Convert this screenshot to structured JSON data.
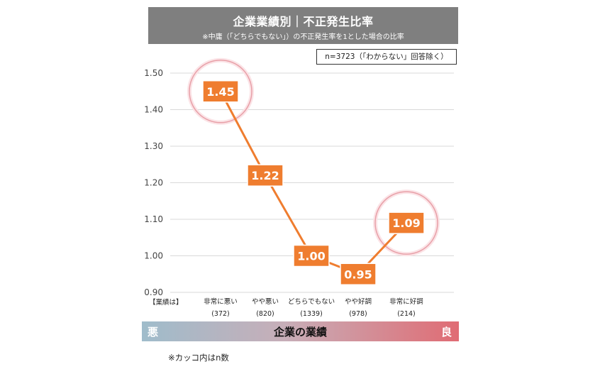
{
  "header": {
    "title": "企業業績別｜不正発生比率",
    "subtitle": "※中庸（「どちらでもない」）の不正発生率を1とした場合の比率"
  },
  "sample_note": "n=3723（「わからない」回答除く）",
  "x_prefix": "【業績は】",
  "x_counts": [
    "(372)",
    "(820)",
    "(1339)",
    "(978)",
    "(214)"
  ],
  "axis_bar": {
    "left": "悪",
    "center": "企業の業績",
    "right": "良"
  },
  "footnote": "※カッコ内はn数",
  "colors": {
    "line": "#ef7d2f",
    "label_bg": "#ef7d2f",
    "circle": "#e8a0a8",
    "grid": "#d9d9d9",
    "title_bg": "#7f7f7f"
  },
  "chart_data": {
    "type": "line",
    "categories": [
      "非常に悪い",
      "やや悪い",
      "どちらでもない",
      "やや好調",
      "非常に好調"
    ],
    "values": [
      1.45,
      1.22,
      1.0,
      0.95,
      1.09
    ],
    "data_labels": [
      "1.45",
      "1.22",
      "1.00",
      "0.95",
      "1.09"
    ],
    "yticks": [
      "1.50",
      "1.40",
      "1.30",
      "1.20",
      "1.10",
      "1.00",
      "0.90"
    ],
    "ylim": [
      0.9,
      1.5
    ],
    "grid": true,
    "highlighted": [
      0,
      4
    ]
  }
}
